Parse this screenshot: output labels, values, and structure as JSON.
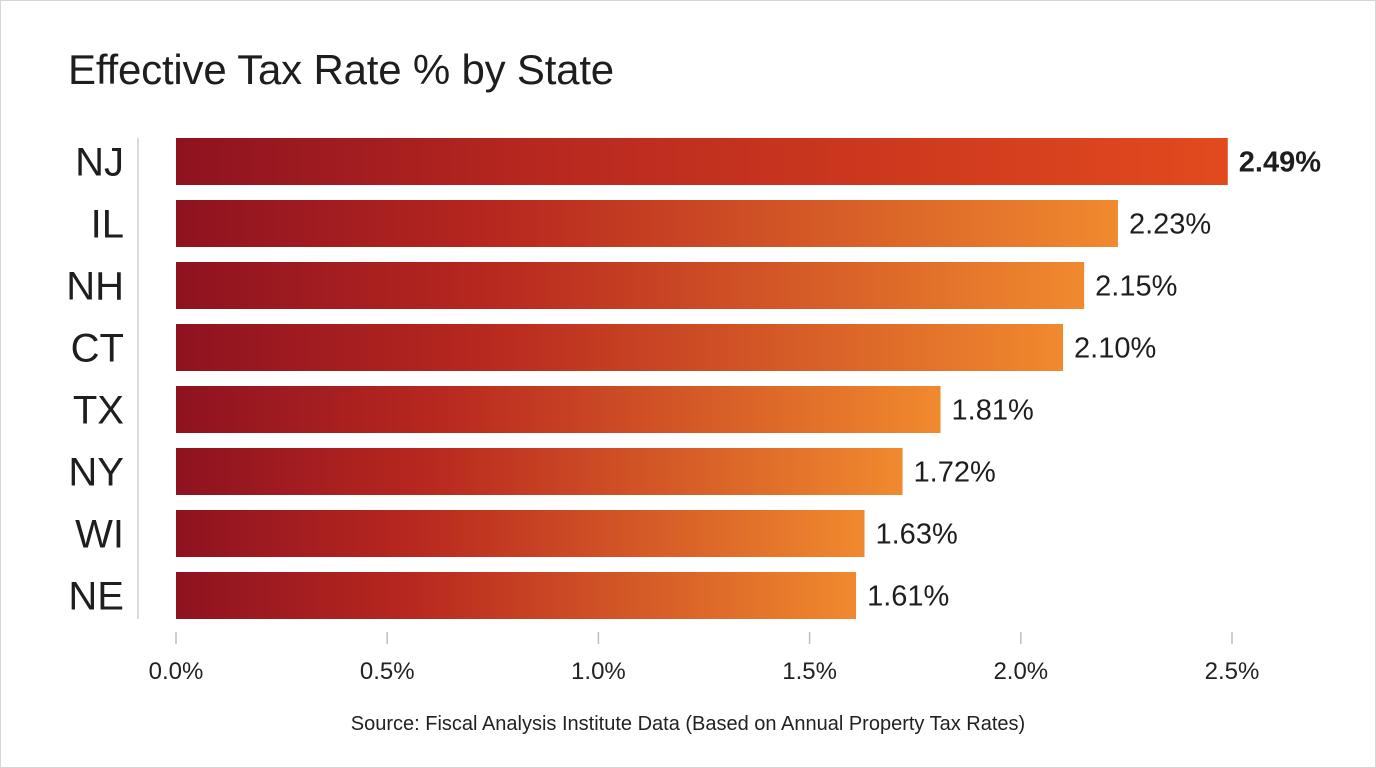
{
  "chart_data": {
    "type": "bar",
    "orientation": "horizontal",
    "title": "Effective Tax Rate % by State",
    "categories": [
      "NJ",
      "IL",
      "NH",
      "CT",
      "TX",
      "NY",
      "WI",
      "NE"
    ],
    "values": [
      2.49,
      2.23,
      2.15,
      2.1,
      1.81,
      1.72,
      1.63,
      1.61
    ],
    "value_labels": [
      "2.49%",
      "2.23%",
      "2.15%",
      "2.10%",
      "1.81%",
      "1.72%",
      "1.63%",
      "1.61%"
    ],
    "xlim": [
      0,
      2.5
    ],
    "x_ticks": [
      0,
      0.5,
      1.0,
      1.5,
      2.0,
      2.5
    ],
    "x_tick_labels": [
      "0.0%",
      "0.5%",
      "1.0%",
      "1.5%",
      "2.0%",
      "2.5%"
    ],
    "xlabel": "",
    "ylabel": "",
    "grid": false,
    "legend": "none",
    "highlight_label_index": 0,
    "colors": {
      "bar_gradient_start": "#8e1220",
      "bar_gradient_mid": "#b8281f",
      "bar_gradient_end": "#f08a2e",
      "top_bar_gradient_end": "#e24a1e",
      "text": "#1e1e1e"
    }
  },
  "source_note": "Source: Fiscal Analysis Institute Data (Based on Annual Property Tax Rates)"
}
